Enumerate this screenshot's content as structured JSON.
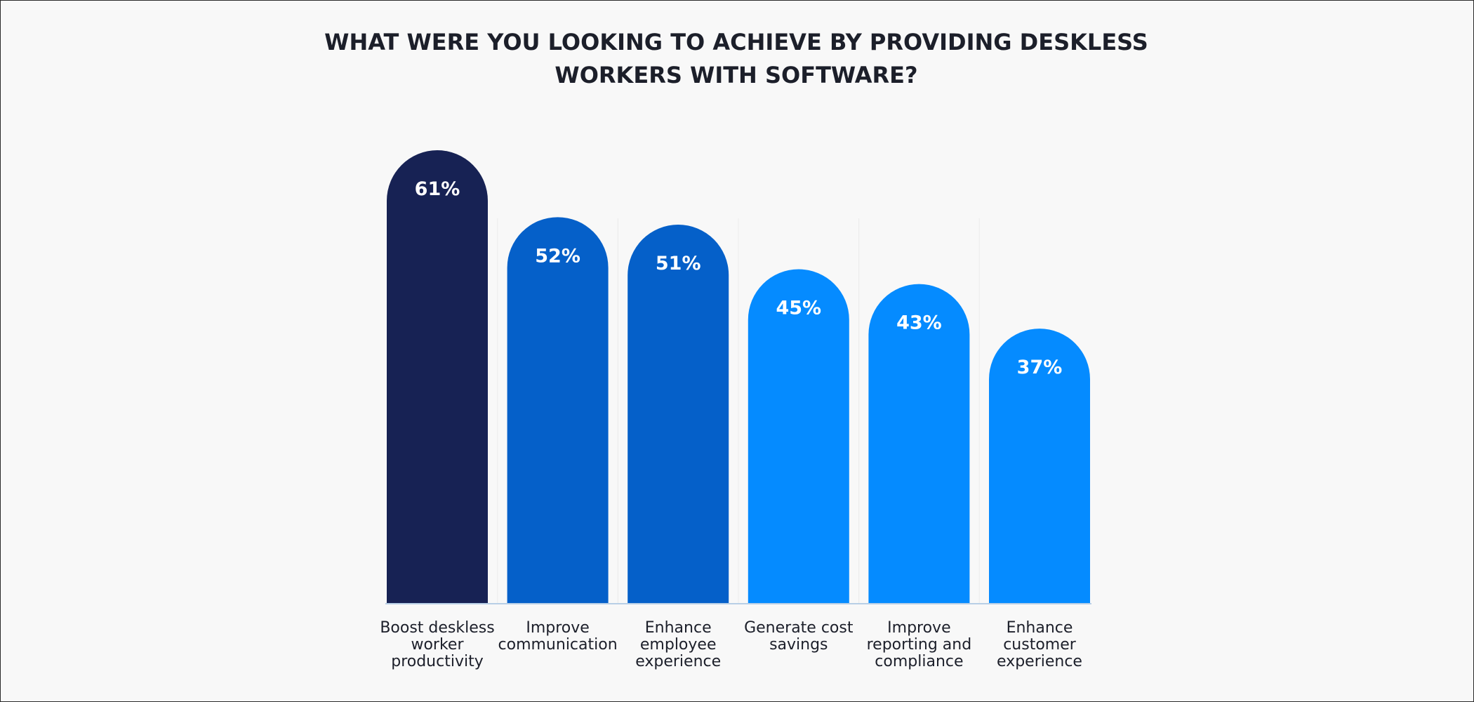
{
  "chart_data": {
    "type": "bar",
    "title_lines": [
      "WHAT WERE YOU LOOKING TO ACHIEVE BY PROVIDING DESKLESS",
      "WORKERS WITH SOFTWARE?"
    ],
    "categories": [
      "Boost deskless worker productivity",
      "Improve communication",
      "Enhance employee experience",
      "Generate cost savings",
      "Improve reporting and compliance",
      "Enhance customer experience"
    ],
    "category_lines": [
      [
        "Boost deskless",
        "worker",
        "productivity"
      ],
      [
        "Improve",
        "communication"
      ],
      [
        "Enhance",
        "employee",
        "experience"
      ],
      [
        "Generate cost",
        "savings"
      ],
      [
        "Improve",
        "reporting and",
        "compliance"
      ],
      [
        "Enhance",
        "customer",
        "experience"
      ]
    ],
    "values": [
      61,
      52,
      51,
      45,
      43,
      37
    ],
    "value_labels": [
      "61%",
      "52%",
      "51%",
      "45%",
      "43%",
      "37%"
    ],
    "bar_colors": [
      "#172254",
      "#0560c9",
      "#0560c9",
      "#058bff",
      "#058bff",
      "#058bff"
    ],
    "axis_color": "#b8cfe6",
    "grid_color": "#ebebeb",
    "ylim": [
      0,
      100
    ],
    "xlabel": "",
    "ylabel": "",
    "legend": "none",
    "grid": true
  }
}
